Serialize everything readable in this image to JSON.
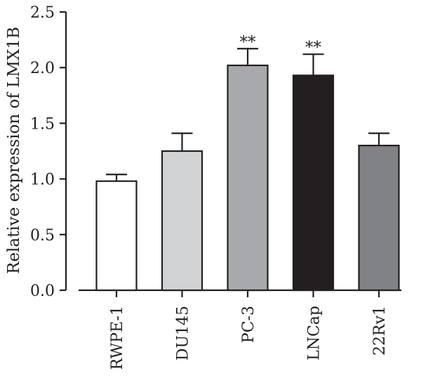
{
  "chart_data": {
    "type": "bar",
    "title": "",
    "xlabel": "",
    "ylabel": "Relative expression of LMX1B",
    "ylim": [
      0,
      2.5
    ],
    "yticks": [
      "0.0",
      "0.5",
      "1.0",
      "1.5",
      "2.0",
      "2.5"
    ],
    "categories": [
      "RWPE-1",
      "DU145",
      "PC-3",
      "LNCap",
      "22Rv1"
    ],
    "values": [
      0.98,
      1.25,
      2.02,
      1.93,
      1.3
    ],
    "error": [
      0.06,
      0.16,
      0.15,
      0.19,
      0.11
    ],
    "significance": [
      "",
      "",
      "**",
      "**",
      ""
    ],
    "colors": [
      "#ffffff",
      "#d1d3d4",
      "#a7a9ac",
      "#231f20",
      "#808285"
    ],
    "grid": false
  }
}
